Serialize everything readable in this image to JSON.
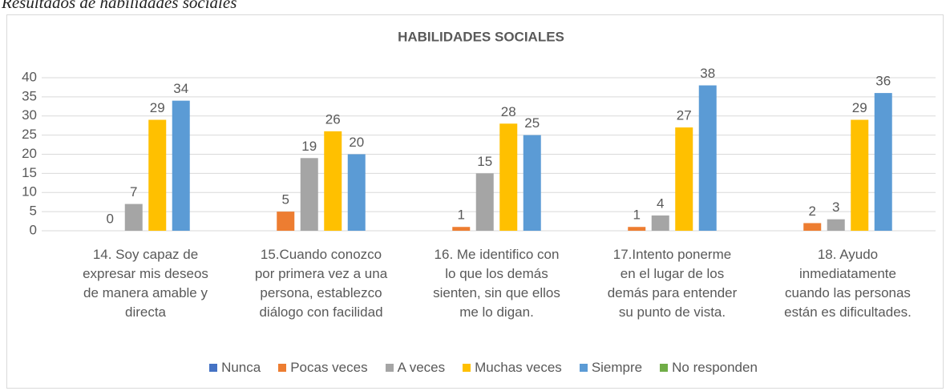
{
  "heading": "Resultados de habilidades sociales",
  "chart_data": {
    "type": "bar",
    "title": "HABILIDADES SOCIALES",
    "categories": [
      "14. Soy capaz de\nexpresar mis deseos\nde manera amable y\ndirecta",
      "15.Cuando conozco\npor primera vez a una\npersona, establezco\ndiálogo con facilidad",
      "16. Me identifico con\nlo que los demás\nsienten, sin que ellos\nme lo digan.",
      "17.Intento ponerme\nen el lugar de los\ndemás para entender\nsu punto de vista.",
      "18. Ayudo\ninmediatamente\ncuando las personas\nestán es dificultades."
    ],
    "series": [
      {
        "name": "Nunca",
        "color": "#4472c4",
        "values": [
          0,
          0,
          0,
          0,
          0
        ],
        "data_labels": false
      },
      {
        "name": "Pocas veces",
        "color": "#ed7d31",
        "values": [
          0,
          5,
          1,
          1,
          2
        ],
        "data_labels": true
      },
      {
        "name": "A veces",
        "color": "#a5a5a5",
        "values": [
          7,
          19,
          15,
          4,
          3
        ],
        "data_labels": true
      },
      {
        "name": "Muchas veces",
        "color": "#ffc000",
        "values": [
          29,
          26,
          28,
          27,
          29
        ],
        "data_labels": true
      },
      {
        "name": "Siempre",
        "color": "#5b9bd5",
        "values": [
          34,
          20,
          25,
          38,
          36
        ],
        "data_labels": true
      },
      {
        "name": "No responden",
        "color": "#70ad47",
        "values": [
          0,
          0,
          0,
          0,
          0
        ],
        "data_labels": false
      }
    ],
    "ylim": [
      0,
      40
    ],
    "yticks": [
      0,
      5,
      10,
      15,
      20,
      25,
      30,
      35,
      40
    ],
    "grid": true,
    "legend": "bottom"
  }
}
